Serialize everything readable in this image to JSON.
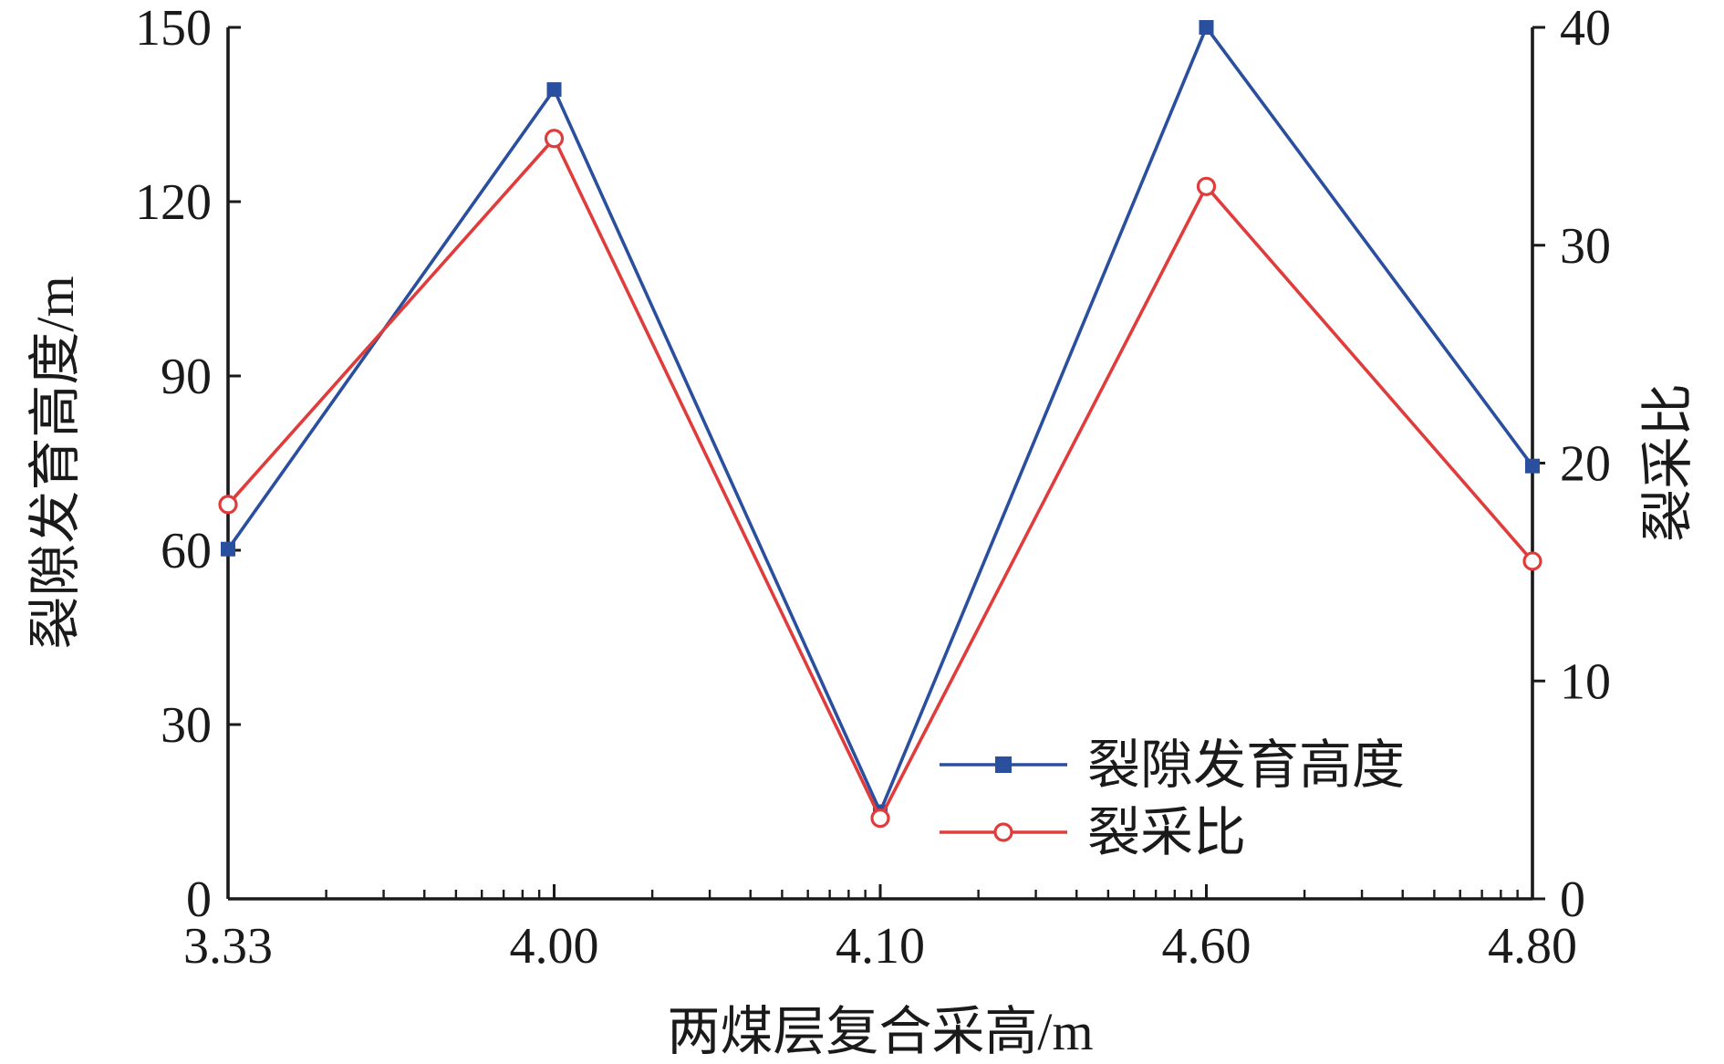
{
  "chart_data": {
    "type": "line",
    "x_categories": [
      "3.33",
      "4.00",
      "4.10",
      "4.60",
      "4.80"
    ],
    "xlabel": "两煤层复合采高/m",
    "ylabel_left": "裂隙发育高度/m",
    "ylabel_right": "裂采比",
    "ylim_left": [
      0,
      150
    ],
    "ylim_right": [
      0,
      40
    ],
    "yticks_left": [
      "0",
      "30",
      "60",
      "90",
      "120",
      "150"
    ],
    "yticks_right": [
      "0",
      "10",
      "20",
      "30",
      "40"
    ],
    "grid": false,
    "legend_position": "bottom-right",
    "series": [
      {
        "name": "裂隙发育高度",
        "axis": "left",
        "color": "#2a4f9e",
        "marker": "filled-square",
        "values": [
          60.2,
          139.3,
          15.0,
          150.0,
          74.5
        ]
      },
      {
        "name": "裂采比",
        "axis": "right",
        "color": "#e03c3c",
        "marker": "open-circle",
        "values": [
          18.1,
          34.9,
          3.7,
          32.7,
          15.5
        ]
      }
    ]
  }
}
